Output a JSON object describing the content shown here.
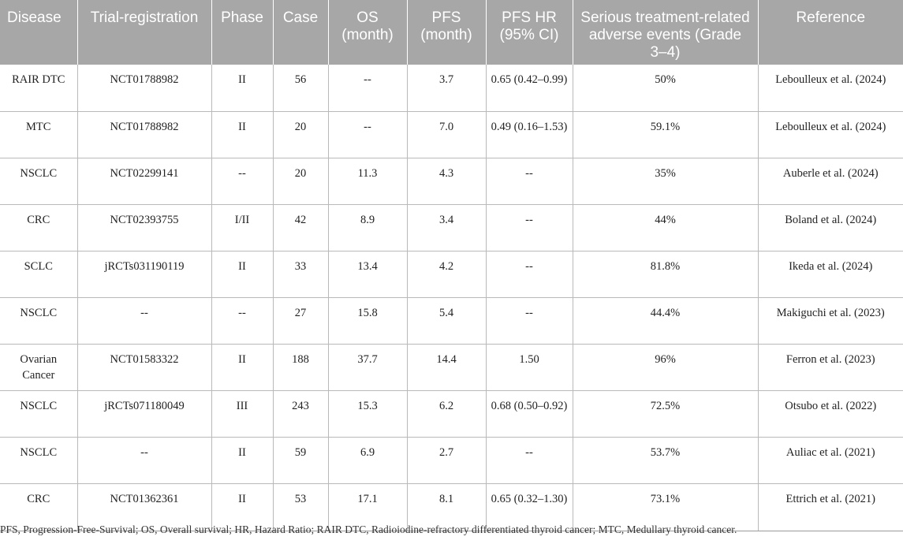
{
  "headers": [
    "Disease",
    "Trial-registration",
    "Phase",
    "Case",
    "OS (month)",
    "PFS (month)",
    "PFS HR (95% CI)",
    "Serious treatment-related adverse events (Grade 3–4)",
    "Reference"
  ],
  "rows": [
    [
      "RAIR DTC",
      "NCT01788982",
      "II",
      "56",
      "--",
      "3.7",
      "0.65 (0.42–0.99)",
      "50%",
      "Leboulleux et al. (2024)"
    ],
    [
      "MTC",
      "NCT01788982",
      "II",
      "20",
      "--",
      "7.0",
      "0.49 (0.16–1.53)",
      "59.1%",
      "Leboulleux et al. (2024)"
    ],
    [
      "NSCLC",
      "NCT02299141",
      "--",
      "20",
      "11.3",
      "4.3",
      "--",
      "35%",
      "Auberle et al. (2024)"
    ],
    [
      "CRC",
      "NCT02393755",
      "I/II",
      "42",
      "8.9",
      "3.4",
      "--",
      "44%",
      "Boland et al. (2024)"
    ],
    [
      "SCLC",
      "jRCTs031190119",
      "II",
      "33",
      "13.4",
      "4.2",
      "--",
      "81.8%",
      "Ikeda et al. (2024)"
    ],
    [
      "NSCLC",
      "--",
      "--",
      "27",
      "15.8",
      "5.4",
      "--",
      "44.4%",
      "Makiguchi et al. (2023)"
    ],
    [
      "Ovarian Cancer",
      "NCT01583322",
      "II",
      "188",
      "37.7",
      "14.4",
      "1.50",
      "96%",
      "Ferron et al. (2023)"
    ],
    [
      "NSCLC",
      "jRCTs071180049",
      "III",
      "243",
      "15.3",
      "6.2",
      "0.68 (0.50–0.92)",
      "72.5%",
      "Otsubo et al. (2022)"
    ],
    [
      "NSCLC",
      "--",
      "II",
      "59",
      "6.9",
      "2.7",
      "--",
      "53.7%",
      "Auliac et al. (2021)"
    ],
    [
      "CRC",
      "NCT01362361",
      "II",
      "53",
      "17.1",
      "8.1",
      "0.65 (0.32–1.30)",
      "73.1%",
      "Ettrich et al. (2021)"
    ]
  ],
  "footnote": "PFS, Progression-Free-Survival; OS, Overall survival; HR, Hazard Ratio; RAIR DTC, Radioiodine-refractory differentiated thyroid cancer; MTC, Medullary thyroid cancer."
}
